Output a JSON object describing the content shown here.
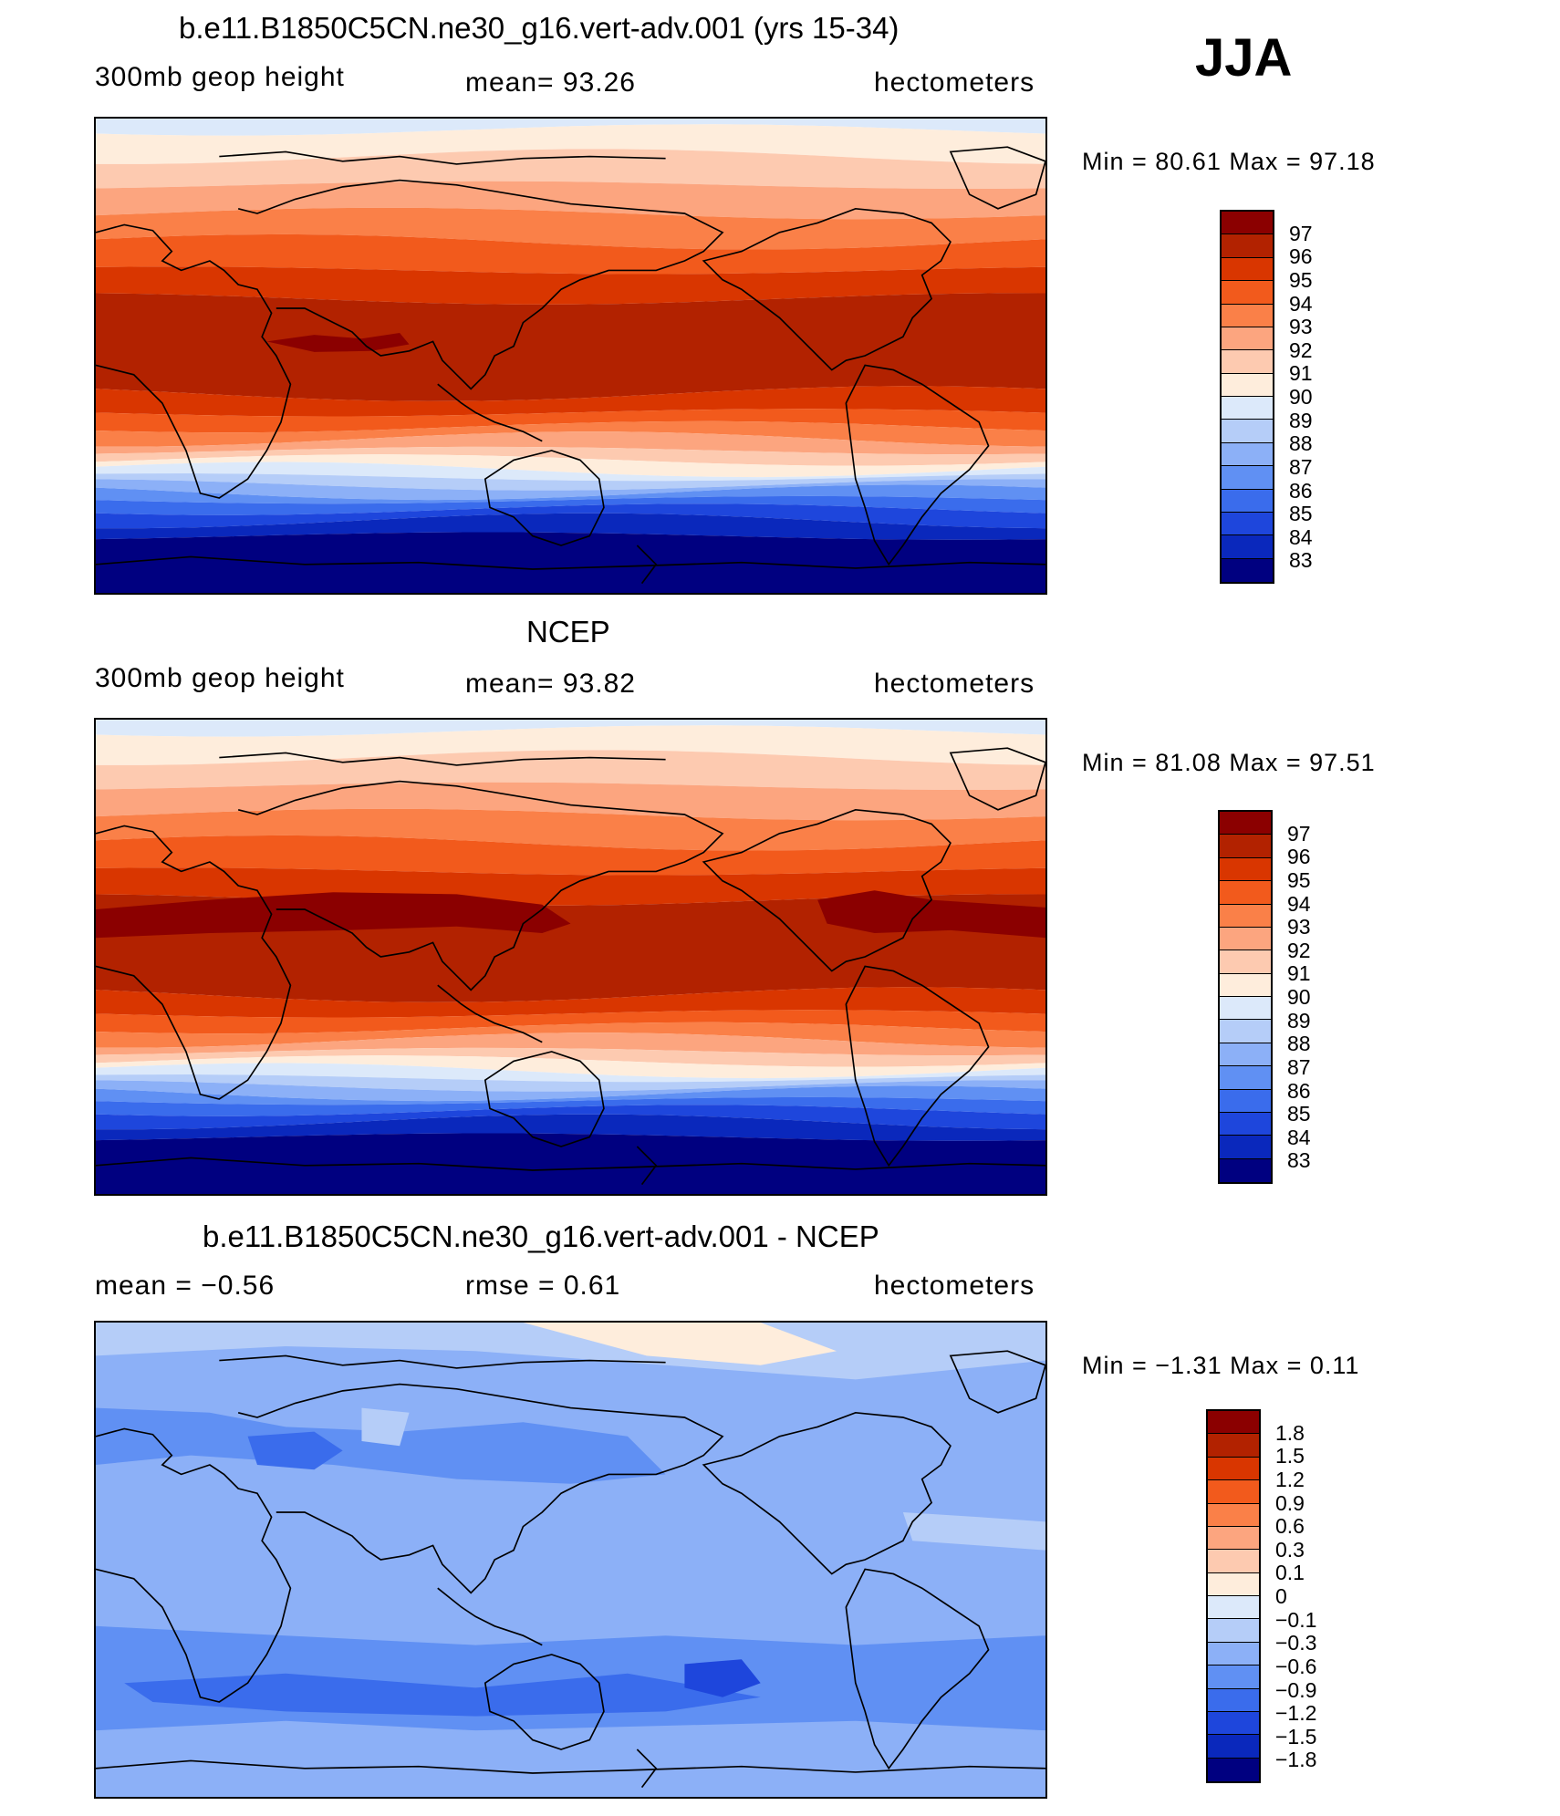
{
  "season": "JJA",
  "panels": [
    {
      "title": "b.e11.B1850C5CN.ne30_g16.vert-adv.001 (yrs 15-34)",
      "left": "300mb geop height",
      "center": "mean=   93.26",
      "right": "hectometers",
      "minmax": "Min =   80.61  Max =   97.18",
      "labels": [
        "97",
        "96",
        "95",
        "94",
        "93",
        "92",
        "91",
        "90",
        "89",
        "88",
        "87",
        "86",
        "85",
        "84",
        "83"
      ]
    },
    {
      "title": "NCEP",
      "left": "300mb geop height",
      "center": "mean=   93.82",
      "right": "hectometers",
      "minmax": "Min =   81.08  Max =   97.51",
      "labels": [
        "97",
        "96",
        "95",
        "94",
        "93",
        "92",
        "91",
        "90",
        "89",
        "88",
        "87",
        "86",
        "85",
        "84",
        "83"
      ]
    },
    {
      "title": "b.e11.B1850C5CN.ne30_g16.vert-adv.001 - NCEP",
      "left": "mean =   −0.56",
      "center": "rmse =    0.61",
      "right": "hectometers",
      "minmax": "Min =   −1.31  Max =    0.11",
      "labels": [
        "1.8",
        "1.5",
        "1.2",
        "0.9",
        "0.6",
        "0.3",
        "0.1",
        "0",
        "−0.1",
        "−0.3",
        "−0.6",
        "−0.9",
        "−1.2",
        "−1.5",
        "−1.8"
      ]
    }
  ],
  "palette": [
    "#8b0000",
    "#b22200",
    "#d93600",
    "#f25a1c",
    "#fa8048",
    "#fca57f",
    "#fdcab0",
    "#feeddc",
    "#dce9fa",
    "#b5cdf8",
    "#8cb0f7",
    "#6090f3",
    "#3a6cec",
    "#1e46dc",
    "#0a28bc",
    "#000080"
  ]
}
